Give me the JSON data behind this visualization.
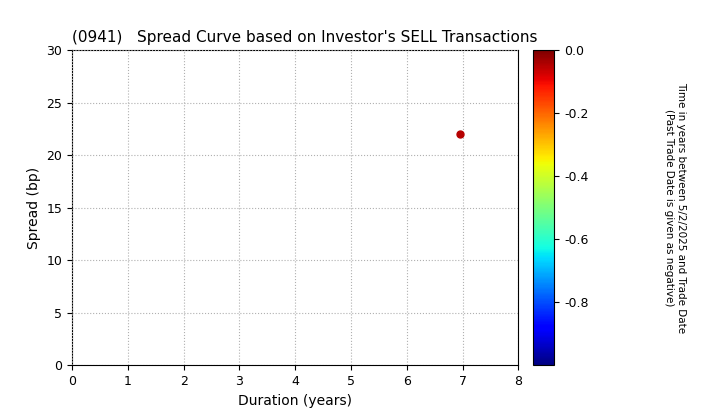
{
  "title": "(0941)   Spread Curve based on Investor's SELL Transactions",
  "xlabel": "Duration (years)",
  "ylabel": "Spread (bp)",
  "colorbar_label": "Time in years between 5/2/2025 and Trade Date\n(Past Trade Date is given as negative)",
  "xlim": [
    0,
    8
  ],
  "ylim": [
    0,
    30
  ],
  "xticks": [
    0,
    1,
    2,
    3,
    4,
    5,
    6,
    7,
    8
  ],
  "yticks": [
    0,
    5,
    10,
    15,
    20,
    25,
    30
  ],
  "scatter_x": [
    6.95
  ],
  "scatter_y": [
    22.0
  ],
  "scatter_color": [
    -0.05
  ],
  "cmap": "jet",
  "clim": [
    -1.0,
    0.0
  ],
  "colorbar_ticks": [
    0.0,
    -0.2,
    -0.4,
    -0.6,
    -0.8
  ],
  "background_color": "#ffffff",
  "grid_color": "#b0b0b0",
  "title_fontsize": 11,
  "axis_label_fontsize": 10,
  "tick_fontsize": 9,
  "colorbar_label_fontsize": 7.5,
  "scatter_size": 25
}
